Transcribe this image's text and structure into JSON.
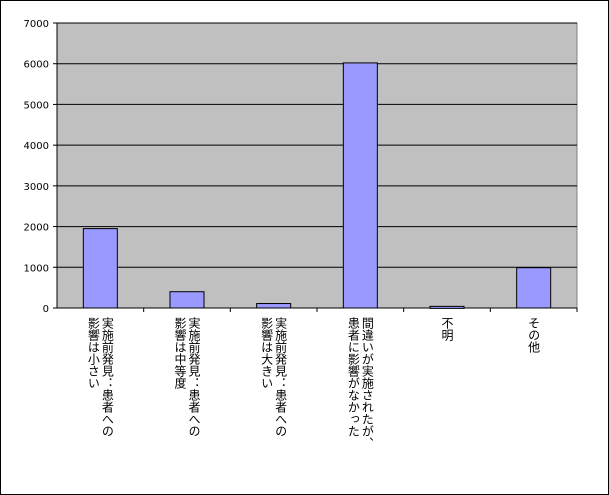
{
  "chart_data": {
    "type": "bar",
    "title": "",
    "xlabel": "",
    "ylabel": "",
    "categories": [
      [
        "実施前発見：患者への",
        "影響は小さい"
      ],
      [
        "実施前発見：患者への",
        "影響は中等度"
      ],
      [
        "実施前発見：患者への",
        "影響は大きい"
      ],
      [
        "間違いが実施されたが、",
        "患者に影響がなかった"
      ],
      [
        "不明"
      ],
      [
        "その他"
      ]
    ],
    "values": [
      1950,
      400,
      110,
      6020,
      40,
      990
    ],
    "ylim": [
      0,
      7000
    ],
    "yticks": [
      "0",
      "1000",
      "2000",
      "3000",
      "4000",
      "5000",
      "6000",
      "7000"
    ],
    "grid": true,
    "colors": {
      "bar": "#9999ff",
      "plot_bg": "#c0c0c0",
      "grid": "#000000"
    }
  }
}
